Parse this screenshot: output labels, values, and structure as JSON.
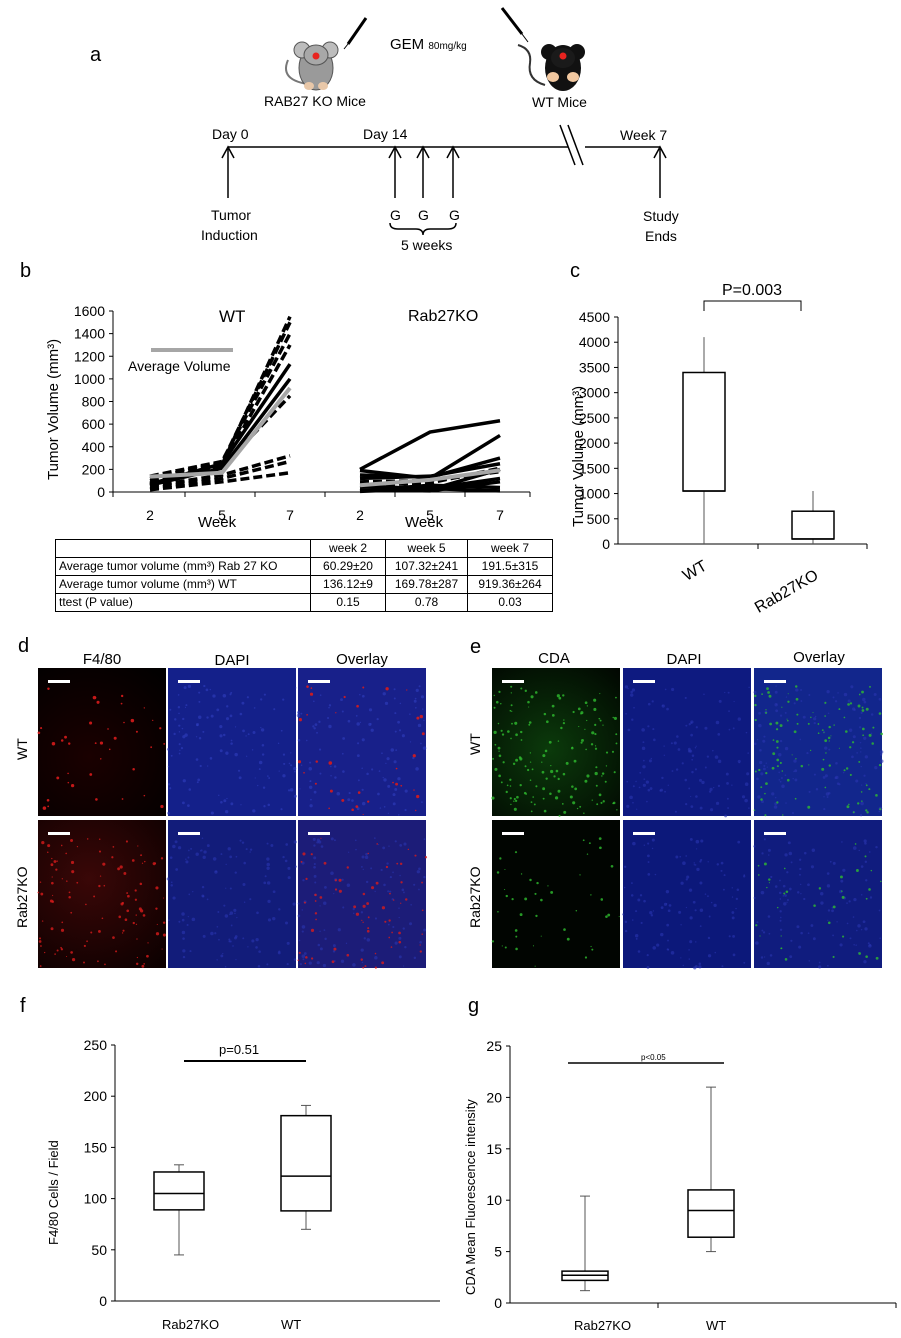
{
  "panel_letters": {
    "a": "a",
    "b": "b",
    "c": "c",
    "d": "d",
    "e": "e",
    "f": "f",
    "g": "g"
  },
  "panel_a": {
    "mouse_left": "RAB27 KO Mice",
    "mouse_right": "WT Mice",
    "treatment": "GEM",
    "dose": "80mg/kg",
    "day0": "Day 0",
    "day14": "Day 14",
    "week7": "Week 7",
    "tumor": "Tumor",
    "induction": "Induction",
    "g": "G",
    "five_weeks": "5 weeks",
    "study": "Study",
    "ends": "Ends"
  },
  "panel_b": {
    "ylabel": "Tumor Volume (mm³)",
    "wt_title": "WT",
    "ko_title": "Rab27KO",
    "legend": "Average Volume",
    "xlabel": "Week",
    "yticks": [
      "0",
      "200",
      "400",
      "600",
      "800",
      "1000",
      "1200",
      "1400",
      "1600"
    ],
    "xticks": [
      "2",
      "5",
      "7"
    ],
    "table": {
      "headers": [
        "",
        "week 2",
        "week 5",
        "week 7"
      ],
      "rows": [
        [
          "Average tumor volume (mm³)  Rab 27 KO",
          "60.29±20",
          "107.32±241",
          "191.5±315"
        ],
        [
          "Average tumor volume (mm³)  WT",
          "136.12±9",
          "169.78±287",
          "919.36±264"
        ],
        [
          "ttest (P value)",
          "0.15",
          "0.78",
          "0.03"
        ]
      ]
    }
  },
  "panel_c": {
    "ylabel": "Tumor Volume (mm³)",
    "pvalue": "P=0.003",
    "categories": [
      "WT",
      "Rab27KO"
    ],
    "yticks": [
      "0",
      "500",
      "1000",
      "1500",
      "2000",
      "2500",
      "3000",
      "3500",
      "4000",
      "4500"
    ]
  },
  "panel_d": {
    "columns": [
      "F4/80",
      "DAPI",
      "Overlay"
    ],
    "rows": [
      "WT",
      "Rab27KO"
    ]
  },
  "panel_e": {
    "columns": [
      "CDA",
      "DAPI",
      "Overlay"
    ],
    "rows": [
      "WT",
      "Rab27KO"
    ]
  },
  "panel_f": {
    "ylabel": "F4/80 Cells / Field",
    "pvalue": "p=0.51",
    "categories": [
      "Rab27KO",
      "WT"
    ],
    "yticks": [
      "0",
      "50",
      "100",
      "150",
      "200",
      "250"
    ]
  },
  "panel_g": {
    "ylabel": "CDA Mean Fluorescence  intensity",
    "pvalue": "p<0.05",
    "categories": [
      "Rab27KO",
      "WT"
    ],
    "yticks": [
      "0",
      "5",
      "10",
      "15",
      "20",
      "25"
    ]
  },
  "chart_data": [
    {
      "type": "line",
      "title": "WT",
      "xlabel": "Week",
      "ylabel": "Tumor Volume (mm³)",
      "x": [
        2,
        5,
        7
      ],
      "ylim": [
        0,
        1600
      ],
      "series": [
        {
          "style": "individual-dashed",
          "values": [
            60,
            240,
            1550
          ]
        },
        {
          "style": "individual-dashed",
          "values": [
            120,
            260,
            1500
          ]
        },
        {
          "style": "individual-dashed",
          "values": [
            140,
            270,
            1400
          ]
        },
        {
          "style": "individual-dashed",
          "values": [
            100,
            230,
            1300
          ]
        },
        {
          "style": "individual-dashed",
          "values": [
            80,
            220,
            850
          ]
        },
        {
          "style": "individual-dashed",
          "values": [
            50,
            150,
            320
          ]
        },
        {
          "style": "individual-dashed",
          "values": [
            30,
            120,
            270
          ]
        },
        {
          "style": "individual-dashed",
          "values": [
            20,
            90,
            170
          ]
        },
        {
          "style": "individual-solid",
          "values": [
            70,
            250,
            1130
          ]
        },
        {
          "style": "individual-solid",
          "values": [
            60,
            210,
            1000
          ]
        },
        {
          "name": "Average Volume",
          "style": "average",
          "values": [
            136,
            170,
            919
          ]
        }
      ]
    },
    {
      "type": "line",
      "title": "Rab27KO",
      "xlabel": "Week",
      "ylabel": "Tumor Volume (mm³)",
      "x": [
        2,
        5,
        7
      ],
      "ylim": [
        0,
        1600
      ],
      "series": [
        {
          "style": "individual-solid",
          "values": [
            200,
            530,
            630
          ]
        },
        {
          "style": "individual-solid",
          "values": [
            190,
            120,
            500
          ]
        },
        {
          "style": "individual-solid",
          "values": [
            150,
            130,
            300
          ]
        },
        {
          "style": "individual-solid",
          "values": [
            120,
            140,
            250
          ]
        },
        {
          "style": "individual-solid",
          "values": [
            60,
            20,
            200
          ]
        },
        {
          "style": "individual-solid",
          "values": [
            50,
            30,
            120
          ]
        },
        {
          "style": "individual-solid",
          "values": [
            20,
            10,
            90
          ]
        },
        {
          "style": "individual-solid",
          "values": [
            10,
            60,
            40
          ]
        },
        {
          "style": "individual-solid",
          "values": [
            5,
            30,
            10
          ]
        },
        {
          "style": "individual-dashed",
          "values": [
            90,
            100,
            180
          ]
        },
        {
          "style": "individual-dashed",
          "values": [
            60,
            80,
            210
          ]
        },
        {
          "name": "Average Volume",
          "style": "average",
          "values": [
            60,
            107,
            192
          ]
        }
      ]
    },
    {
      "type": "box",
      "ylabel": "Tumor Volume (mm³)",
      "categories": [
        "WT",
        "Rab27KO"
      ],
      "ylim": [
        0,
        4500
      ],
      "boxes": [
        {
          "min": 0,
          "q1": 1050,
          "median": 1050,
          "q3": 3400,
          "max": 4100
        },
        {
          "min": 0,
          "q1": 100,
          "median": 100,
          "q3": 650,
          "max": 1050
        }
      ],
      "annotation": "P=0.003"
    },
    {
      "type": "box",
      "ylabel": "F4/80 Cells / Field",
      "categories": [
        "Rab27KO",
        "WT"
      ],
      "ylim": [
        0,
        250
      ],
      "boxes": [
        {
          "min": 45,
          "q1": 89,
          "median": 105,
          "q3": 126,
          "max": 133
        },
        {
          "min": 70,
          "q1": 88,
          "median": 122,
          "q3": 181,
          "max": 191
        }
      ],
      "annotation": "p=0.51"
    },
    {
      "type": "box",
      "ylabel": "CDA Mean Fluorescence  intensity",
      "categories": [
        "Rab27KO",
        "WT"
      ],
      "ylim": [
        0,
        25
      ],
      "boxes": [
        {
          "min": 1.2,
          "q1": 2.2,
          "median": 2.7,
          "q3": 3.1,
          "max": 10.4
        },
        {
          "min": 5.0,
          "q1": 6.4,
          "median": 9.0,
          "q3": 11.0,
          "max": 21.0
        }
      ],
      "annotation": "p<0.05"
    }
  ],
  "colors": {
    "axis": "#000000",
    "average_line": "#a6a6a6",
    "mouse_grey": "#9a9a9a",
    "mouse_black": "#111111",
    "mouse_dot": "#e8231f",
    "micro_red": "#d81b1b",
    "micro_green": "#2fbd2f",
    "micro_blue": "#1b2a9a"
  }
}
